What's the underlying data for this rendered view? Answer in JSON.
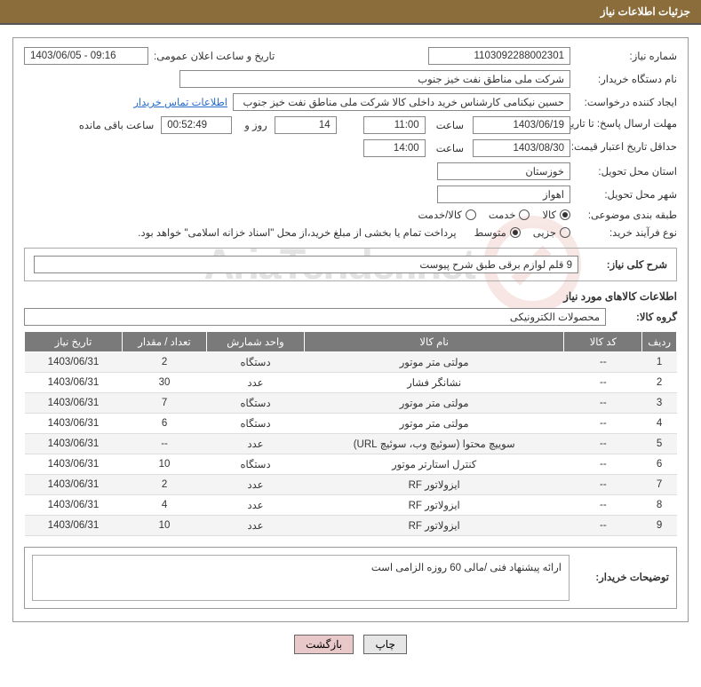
{
  "header": {
    "title": "جزئیات اطلاعات نیاز"
  },
  "fields": {
    "need_number_label": "شماره نیاز:",
    "need_number": "1103092288002301",
    "announce_label": "تاریخ و ساعت اعلان عمومی:",
    "announce_value": "1403/06/05 - 09:16",
    "buyer_org_label": "نام دستگاه خریدار:",
    "buyer_org": "شرکت ملی مناطق نفت خیز جنوب",
    "requester_label": "ایجاد کننده درخواست:",
    "requester": "حسین  نیکنامی  کارشناس خرید داخلی کالا شرکت ملی مناطق نفت خیز جنوب",
    "contact_link": "اطلاعات تماس خریدار",
    "resp_deadline_label": "مهلت ارسال پاسخ: تا تاریخ:",
    "resp_date": "1403/06/19",
    "time_label": "ساعت",
    "resp_time": "11:00",
    "days_count": "14",
    "days_and": "روز و",
    "remaining_time": "00:52:49",
    "remaining_label": "ساعت باقی مانده",
    "price_valid_label": "حداقل تاریخ اعتبار قیمت: تا تاریخ:",
    "price_valid_date": "1403/08/30",
    "price_valid_time": "14:00",
    "province_label": "استان محل تحویل:",
    "province": "خوزستان",
    "city_label": "شهر محل تحویل:",
    "city": "اهواز",
    "category_label": "طبقه بندی موضوعی:",
    "cat_goods": "کالا",
    "cat_service": "خدمت",
    "cat_both": "کالا/خدمت",
    "process_label": "نوع فرآیند خرید:",
    "proc_partial": "جزیی",
    "proc_medium": "متوسط",
    "treasury_note": "پرداخت تمام یا بخشی از مبلغ خرید،از محل \"اسناد خزانه اسلامی\" خواهد بود.",
    "summary_label": "شرح کلی نیاز:",
    "summary": "9 قلم لوازم برقی طبق شرح پیوست",
    "section_title": "اطلاعات کالاهای مورد نیاز",
    "group_label": "گروه کالا:",
    "group": "محصولات الکترونیکی",
    "buyer_notes_label": "توضیحات خریدار:",
    "buyer_notes": "ارائه پیشنهاد فنی /مالی 60 روزه الزامی است"
  },
  "table": {
    "columns": [
      "ردیف",
      "کد کالا",
      "نام کالا",
      "واحد شمارش",
      "تعداد / مقدار",
      "تاریخ نیاز"
    ],
    "col_widths": [
      "5%",
      "12%",
      "40%",
      "15%",
      "13%",
      "15%"
    ],
    "rows": [
      [
        "1",
        "--",
        "مولتی متر موتور",
        "دستگاه",
        "2",
        "1403/06/31"
      ],
      [
        "2",
        "--",
        "نشانگر فشار",
        "عدد",
        "30",
        "1403/06/31"
      ],
      [
        "3",
        "--",
        "مولتی متر موتور",
        "دستگاه",
        "7",
        "1403/06/31"
      ],
      [
        "4",
        "--",
        "مولتی متر موتور",
        "دستگاه",
        "6",
        "1403/06/31"
      ],
      [
        "5",
        "--",
        "سوییچ محتوا (سوئیچ وب، سوئیچ URL)",
        "عدد",
        "--",
        "1403/06/31"
      ],
      [
        "6",
        "--",
        "کنترل استارتر موتور",
        "دستگاه",
        "10",
        "1403/06/31"
      ],
      [
        "7",
        "--",
        "ایزولاتور RF",
        "عدد",
        "2",
        "1403/06/31"
      ],
      [
        "8",
        "--",
        "ایزولاتور RF",
        "عدد",
        "4",
        "1403/06/31"
      ],
      [
        "9",
        "--",
        "ایزولاتور RF",
        "عدد",
        "10",
        "1403/06/31"
      ]
    ]
  },
  "buttons": {
    "print": "چاپ",
    "back": "بازگشت"
  },
  "watermark": {
    "text": "AriaTender.net"
  },
  "colors": {
    "header_bg": "#8a6d3b",
    "th_bg": "#7a7a7a",
    "link": "#2a6dc9",
    "btn_alt_bg": "#e8c8c8"
  }
}
